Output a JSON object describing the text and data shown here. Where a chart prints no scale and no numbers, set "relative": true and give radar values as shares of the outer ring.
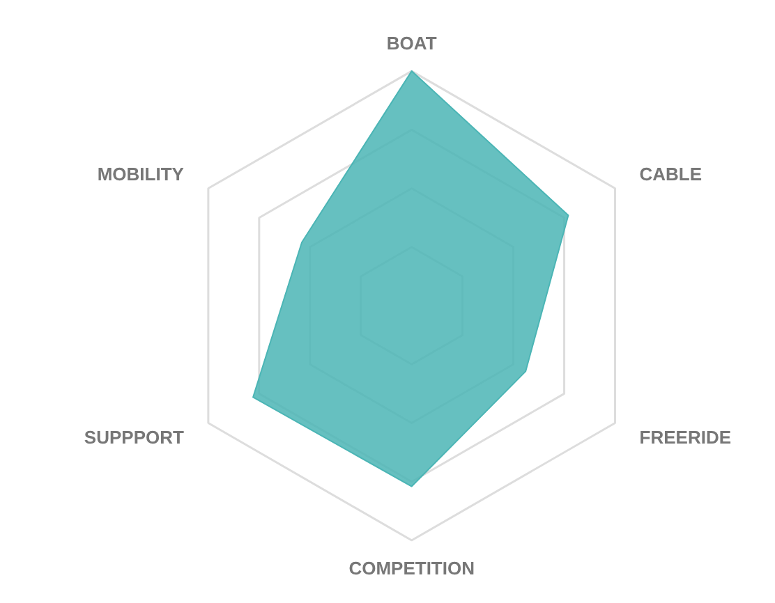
{
  "chart_data": {
    "type": "radar",
    "relative": true,
    "categories": [
      "BOAT",
      "CABLE",
      "FREERIDE",
      "COMPETITION",
      "SUPPPORT",
      "MOBILITY"
    ],
    "series": [
      {
        "color": "#4bb5b5",
        "values": [
          1.0,
          0.77,
          0.56,
          0.77,
          0.78,
          0.54
        ]
      }
    ],
    "grid": true
  }
}
